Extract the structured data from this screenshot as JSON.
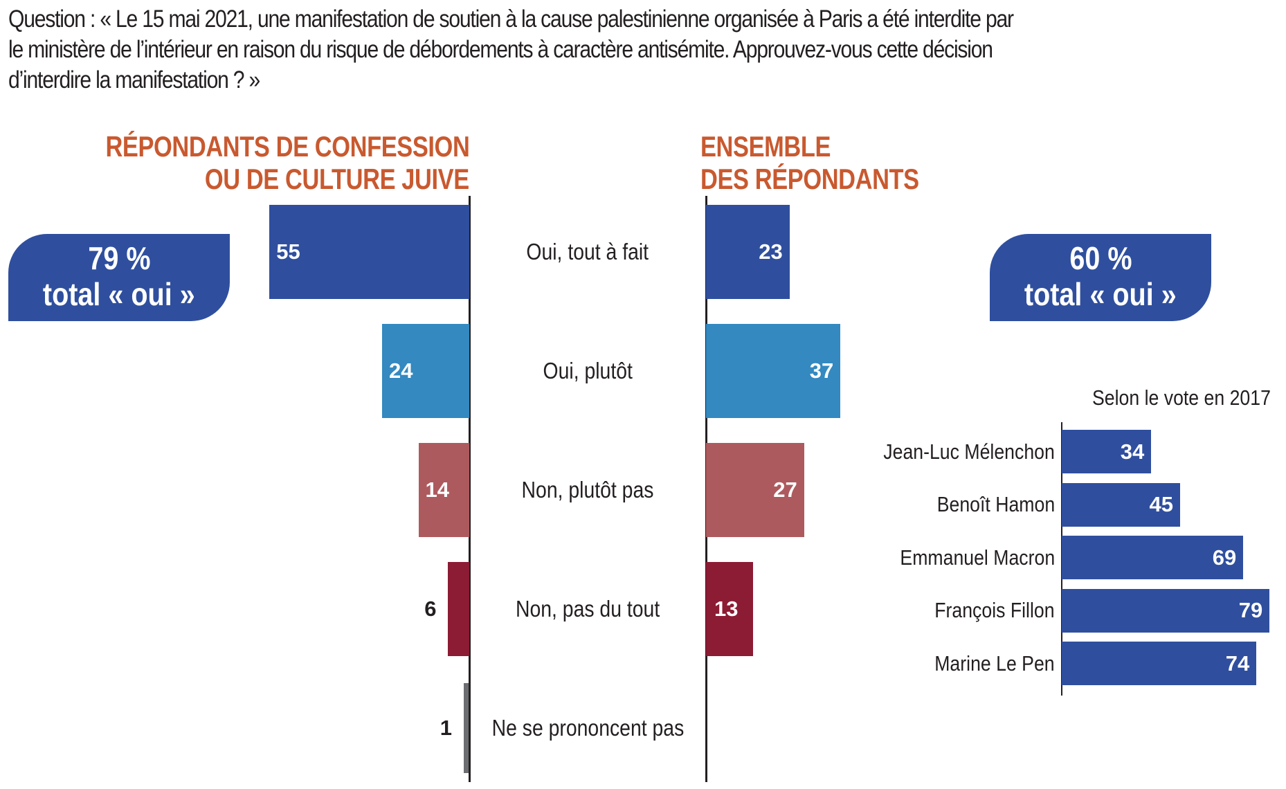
{
  "question": "Question : « Le 15 mai 2021, une manifestation de soutien à la cause palestinienne organisée à Paris a été interdite par le ministère de l’intérieur en raison du risque de débordements à caractère antisémite. Approuvez-vous cette décision d’interdire la manifestation ? »",
  "question_lines": [
    "Question : « Le 15 mai 2021, une manifestation de soutien à la cause palestinienne organisée à Paris a été interdite par",
    "le ministère de l’intérieur en raison du risque de débordements à caractère antisémite. Approuvez-vous cette décision",
    "d’interdire la manifestation ? »"
  ],
  "colors": {
    "heading": "#c9592f",
    "oui_tout_a_fait": "#2f4f9e",
    "oui_plutot": "#3389c0",
    "non_plutot_pas": "#ad5a5e",
    "non_pas_du_tout": "#8c1b34",
    "nsp": "#6d6e71",
    "badge": "#2f4f9e",
    "vote_bar": "#2f4f9e"
  },
  "badges": {
    "left": {
      "pct": "79 %",
      "label": "total « oui »"
    },
    "right": {
      "pct": "60 %",
      "label": "total « oui »"
    }
  },
  "chart_data": [
    {
      "type": "bar",
      "orientation": "horizontal",
      "direction": "leftward",
      "title": "RÉPONDANTS DE CONFESSION OU DE CULTURE JUIVE",
      "title_lines": [
        "RÉPONDANTS DE CONFESSION",
        "OU DE CULTURE JUIVE"
      ],
      "categories": [
        "Oui, tout à fait",
        "Oui, plutôt",
        "Non, plutôt pas",
        "Non, pas du tout",
        "Ne se prononcent pas"
      ],
      "values": [
        55,
        24,
        14,
        6,
        1
      ],
      "unit": "%",
      "total_oui": 79,
      "xlim": [
        0,
        60
      ],
      "grid": false
    },
    {
      "type": "bar",
      "orientation": "horizontal",
      "direction": "rightward",
      "title": "ENSEMBLE DES RÉPONDANTS",
      "title_lines": [
        "ENSEMBLE",
        "DES RÉPONDANTS"
      ],
      "categories": [
        "Oui, tout à fait",
        "Oui, plutôt",
        "Non, plutôt pas",
        "Non, pas du tout",
        "Ne se prononcent pas"
      ],
      "values": [
        23,
        37,
        27,
        13,
        null
      ],
      "unit": "%",
      "total_oui": 60,
      "xlim": [
        0,
        60
      ],
      "grid": false
    },
    {
      "type": "bar",
      "orientation": "horizontal",
      "title": "Selon le vote en 2017",
      "categories": [
        "Jean-Luc Mélenchon",
        "Benoît Hamon",
        "Emmanuel Macron",
        "François Fillon",
        "Marine Le Pen"
      ],
      "values": [
        34,
        45,
        69,
        79,
        74
      ],
      "unit": "%",
      "xlim": [
        0,
        80
      ],
      "grid": false
    }
  ]
}
